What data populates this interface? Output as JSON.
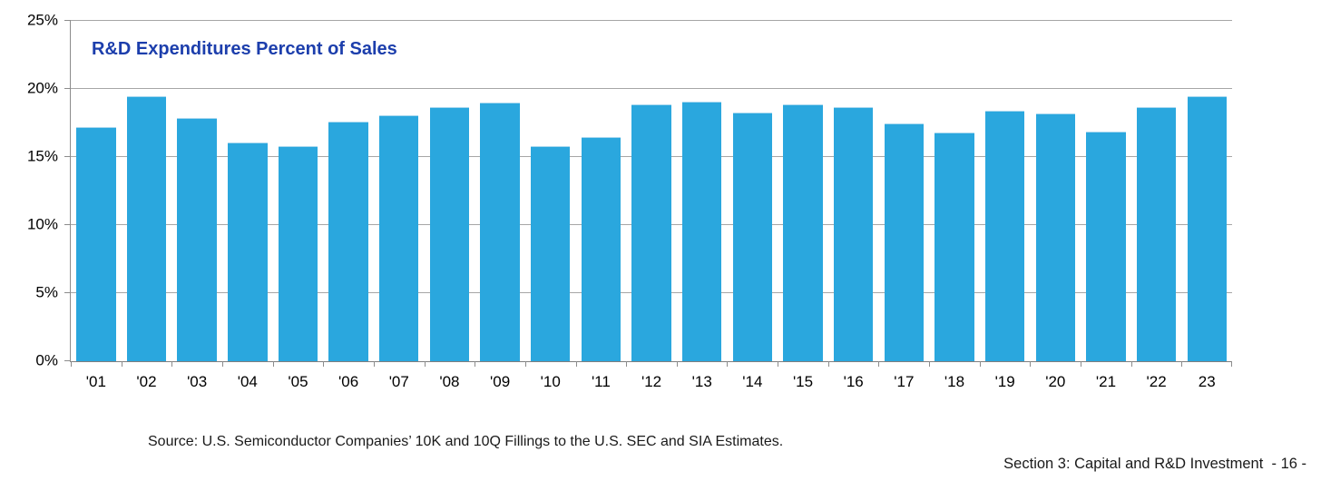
{
  "chart_data": {
    "type": "bar",
    "title": "R&D Expenditures Percent of Sales",
    "categories": [
      "'01",
      "'02",
      "'03",
      "'04",
      "'05",
      "'06",
      "'07",
      "'08",
      "'09",
      "'10",
      "'11",
      "'12",
      "'13",
      "'14",
      "'15",
      "'16",
      "'17",
      "'18",
      "'19",
      "'20",
      "'21",
      "'22",
      "23"
    ],
    "values": [
      17.2,
      19.5,
      17.9,
      16.1,
      15.8,
      17.6,
      18.1,
      18.7,
      19.0,
      15.8,
      16.5,
      18.9,
      19.1,
      18.3,
      18.9,
      18.7,
      17.5,
      16.8,
      18.4,
      18.2,
      16.9,
      18.7,
      19.5
    ],
    "xlabel": "",
    "ylabel": "",
    "ylim": [
      0,
      25
    ],
    "ytick_labels": [
      "0%",
      "5%",
      "10%",
      "15%",
      "20%",
      "25%"
    ],
    "grid": true,
    "legend": "none",
    "bar_color": "#2aa7de",
    "title_color": "#1c3eac",
    "gridline_color": "#a6a6a6"
  },
  "footer": {
    "source": "Source: U.S. Semiconductor Companies’ 10K and 10Q Fillings to the U.S. SEC and SIA Estimates.",
    "section": "Section 3: Capital and R&D Investment  - 16 -"
  }
}
